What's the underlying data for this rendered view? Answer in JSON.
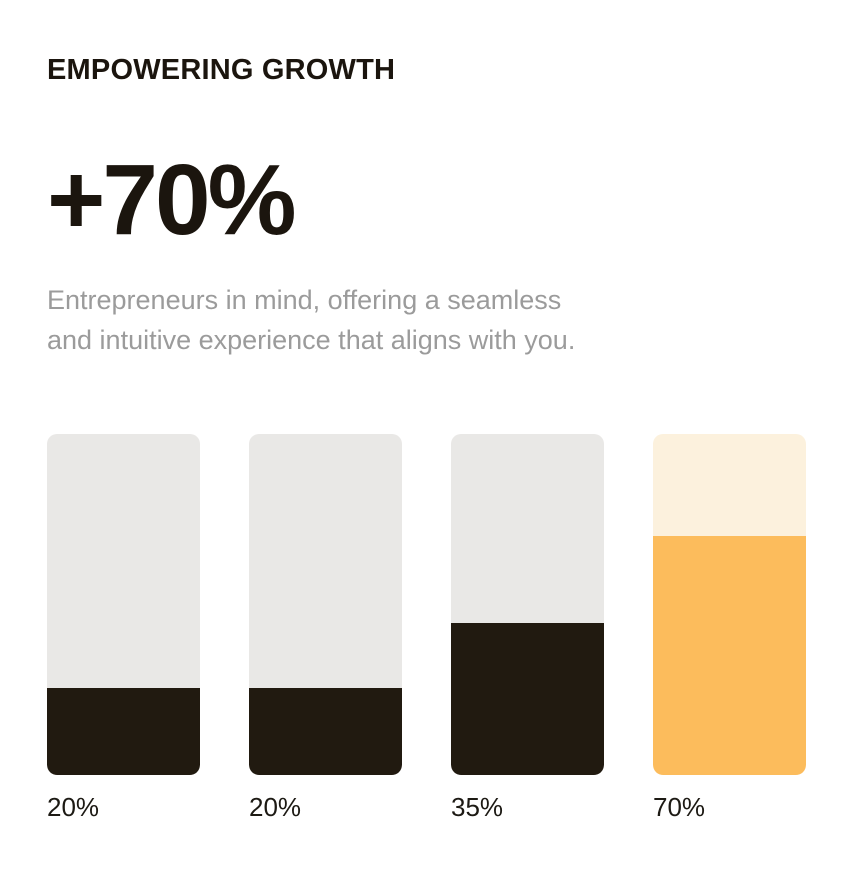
{
  "header": {
    "eyebrow": "EMPOWERING GROWTH",
    "headline": "+70%",
    "description_line1": "Entrepreneurs in mind, offering a seamless",
    "description_line2": "and intuitive experience that aligns with you."
  },
  "colors": {
    "background": "#ffffff",
    "text_dark": "#1b150e",
    "text_muted": "#9b9b9b",
    "bar_track_gray": "#e9e8e6",
    "bar_fill_dark": "#211a10",
    "bar_track_cream": "#fcf1dd",
    "bar_fill_orange": "#fcbc5c"
  },
  "chart_data": {
    "type": "bar",
    "title": "EMPOWERING GROWTH",
    "highlight_stat": "+70%",
    "categories": [
      "20%",
      "20%",
      "35%",
      "70%"
    ],
    "values": [
      20,
      20,
      35,
      70
    ],
    "unit": "%",
    "ylim": [
      0,
      100
    ],
    "grid": false,
    "legend": false,
    "value_labels_position": "below-bars",
    "bars": [
      {
        "label": "20%",
        "value": 20,
        "fill_percent": 25.5,
        "track_color": "#e9e8e6",
        "fill_color": "#211a10"
      },
      {
        "label": "20%",
        "value": 20,
        "fill_percent": 25.5,
        "track_color": "#e9e8e6",
        "fill_color": "#211a10"
      },
      {
        "label": "35%",
        "value": 35,
        "fill_percent": 44.5,
        "track_color": "#e9e8e6",
        "fill_color": "#211a10"
      },
      {
        "label": "70%",
        "value": 70,
        "fill_percent": 70,
        "track_color": "#fcf1dd",
        "fill_color": "#fcbc5c"
      }
    ]
  }
}
